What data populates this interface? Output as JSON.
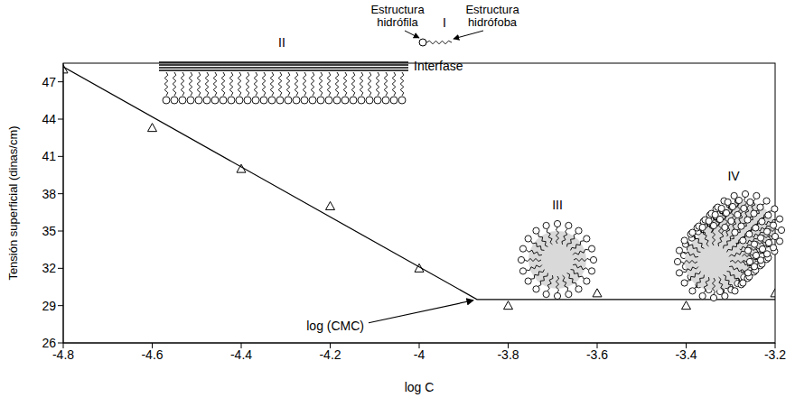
{
  "chart_data": {
    "type": "scatter",
    "x_label": "log C",
    "y_label": "Tensión superficial (dinas/cm)",
    "xlim": [
      -4.8,
      -3.2
    ],
    "xticks": [
      -4.8,
      -4.6,
      -4.4,
      -4.2,
      -4,
      -3.8,
      -3.6,
      -3.4,
      -3.2
    ],
    "ylim": [
      26,
      48.5
    ],
    "yticks": [
      26,
      29,
      32,
      35,
      38,
      41,
      44,
      47
    ],
    "grid": false,
    "series": [
      {
        "type": "scatter",
        "marker": "triangle",
        "color": "#000000",
        "x": [
          -4.8,
          -4.6,
          -4.4,
          -4.2,
          -4,
          -3.8,
          -3.6,
          -3.4,
          -3.2
        ],
        "values": [
          48,
          43.3,
          40,
          37,
          32,
          29,
          30,
          29,
          30
        ]
      },
      {
        "type": "line",
        "line_style": "solid",
        "color": "#000000",
        "x": [
          -4.8,
          -3.87,
          -3.2
        ],
        "values": [
          48.2,
          29.5,
          29.5
        ]
      }
    ],
    "annotations": [
      {
        "text": "log (CMC)",
        "x": -3.87,
        "y": 29.5
      }
    ],
    "diagrams": [
      {
        "label": "I",
        "parts": [
          "Estructura hidrófila",
          "Estructura hidrófoba"
        ]
      },
      {
        "label": "II",
        "interface": "Interfase"
      },
      {
        "label": "III"
      },
      {
        "label": "IV"
      }
    ]
  }
}
